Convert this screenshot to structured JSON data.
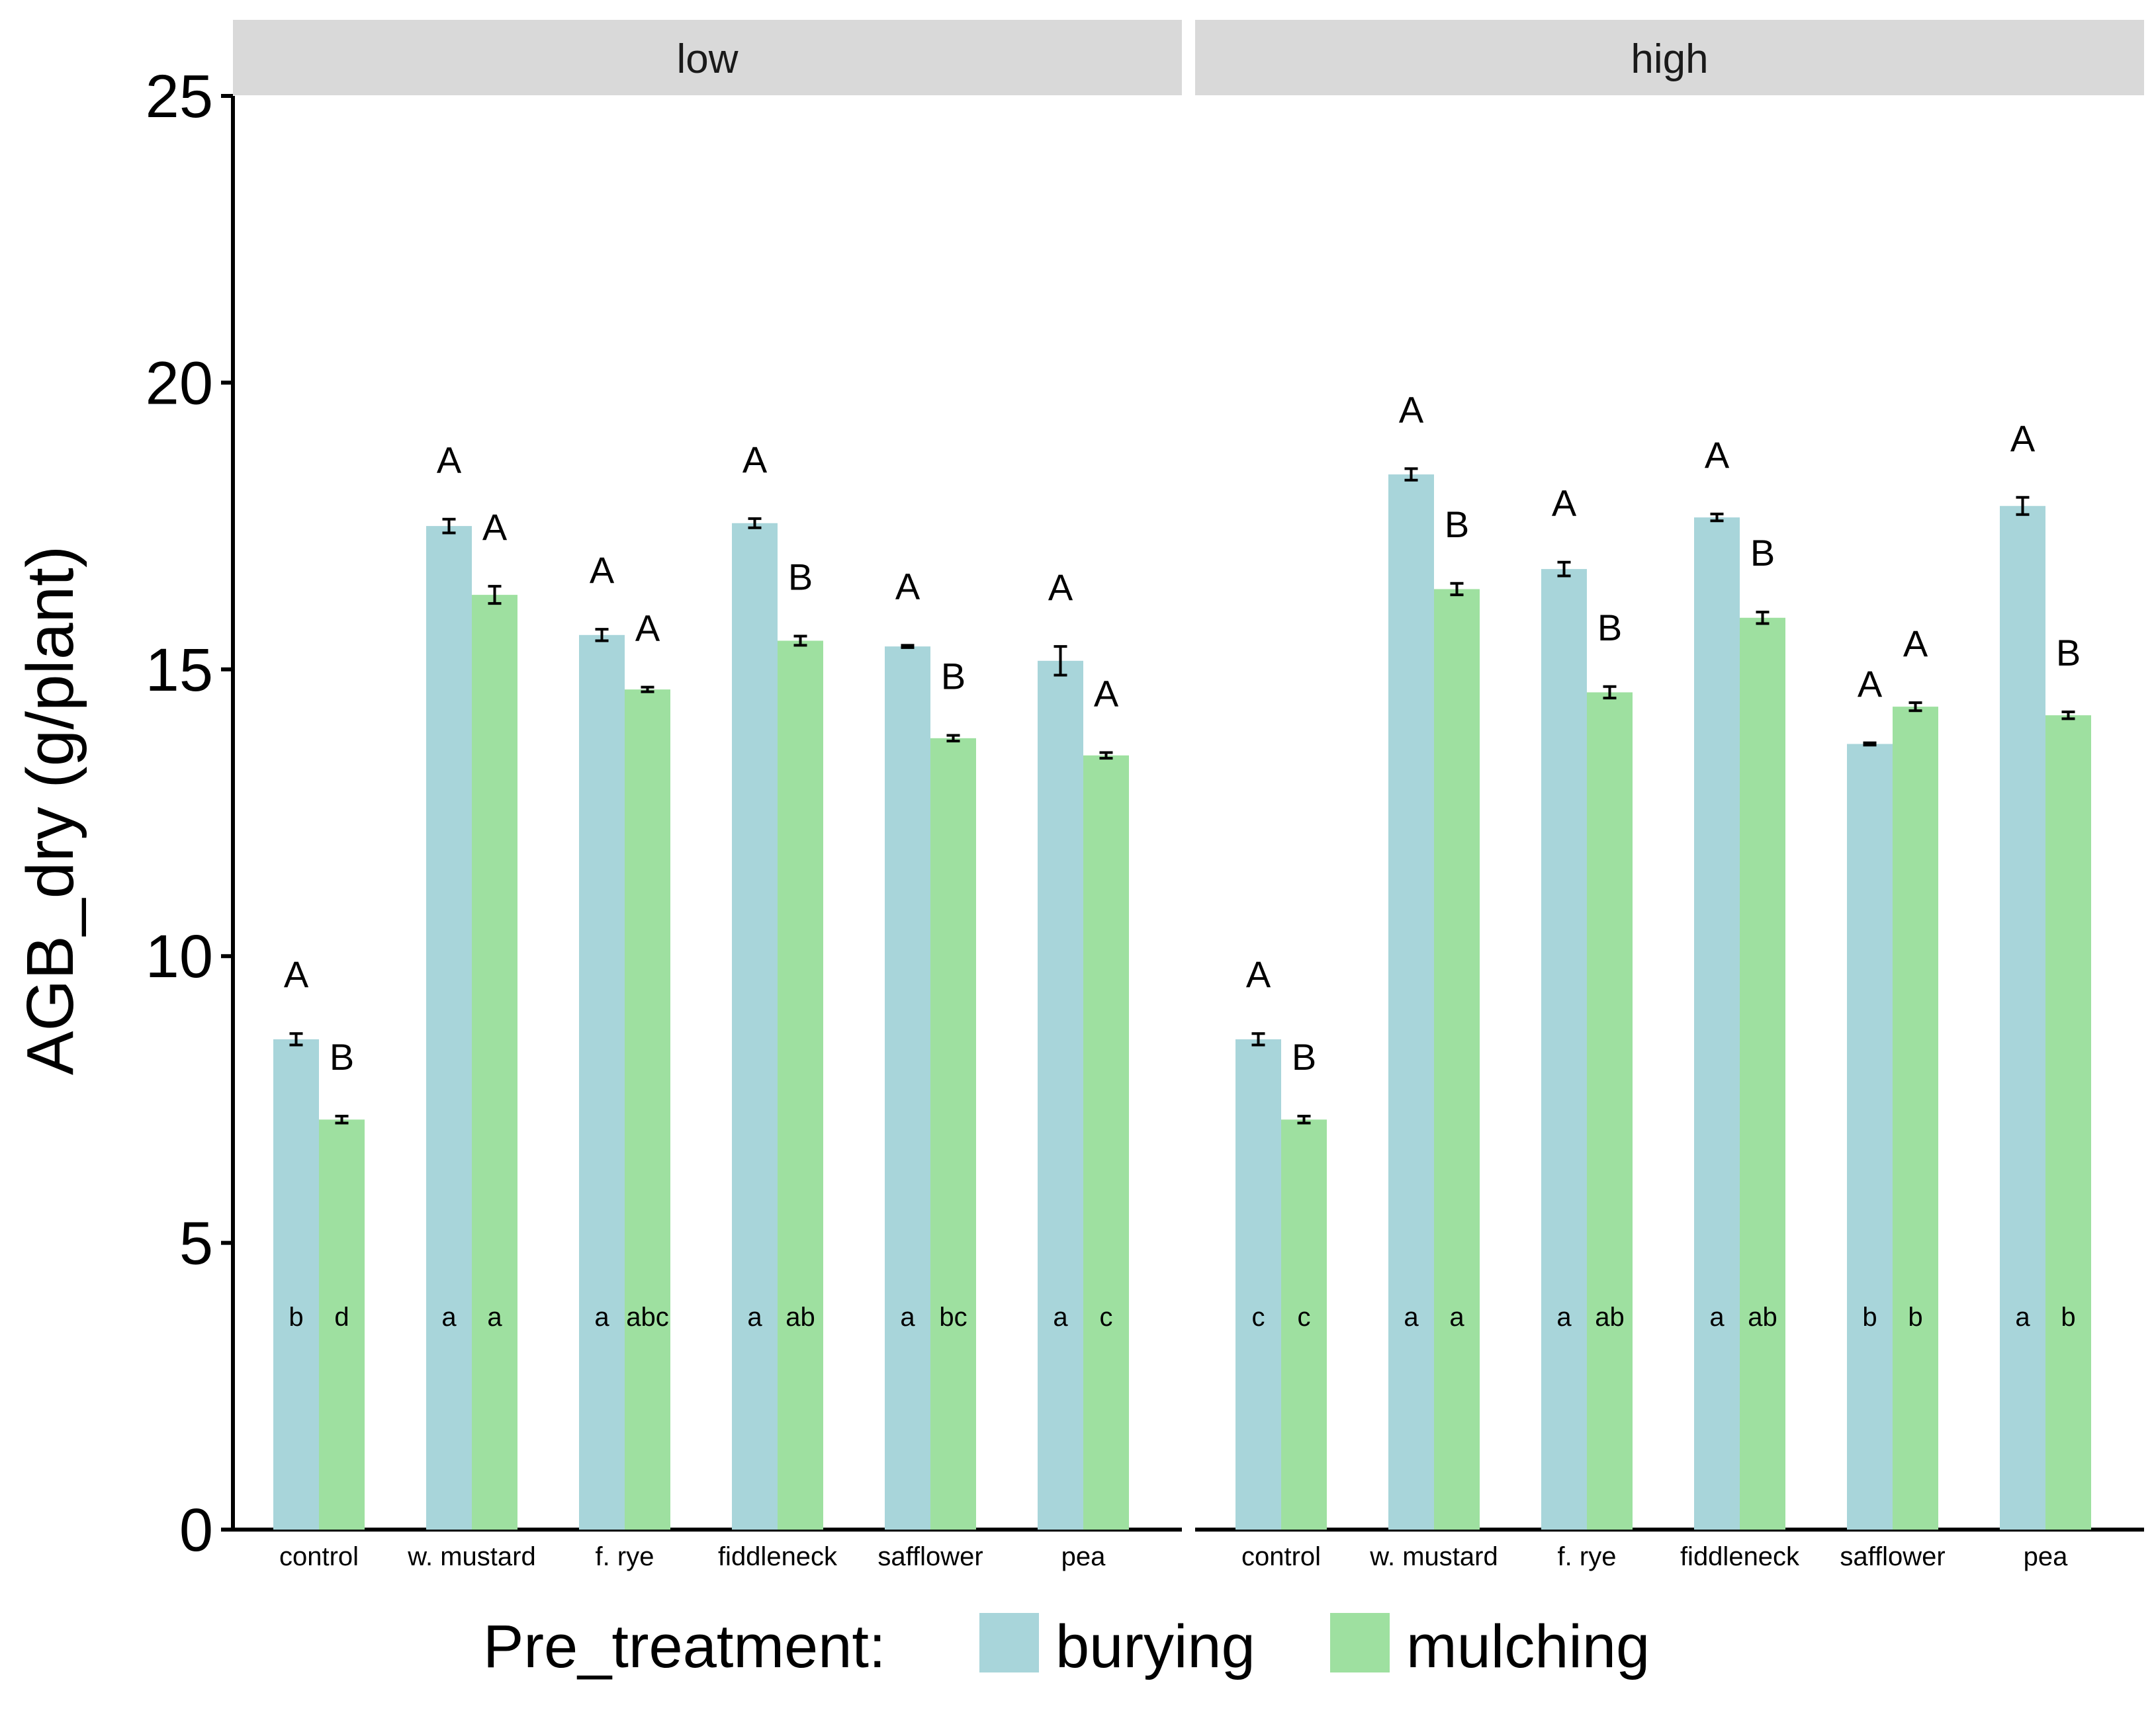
{
  "chart_data": {
    "type": "bar",
    "ylabel": "AGB_dry (g/plant)",
    "ylim": [
      0,
      25
    ],
    "yticks": [
      "0",
      "5",
      "10",
      "15",
      "20",
      "25"
    ],
    "categories": [
      "control",
      "w. mustard",
      "f. rye",
      "fiddleneck",
      "safflower",
      "pea"
    ],
    "legend": {
      "title": "Pre_treatment:",
      "position": "bottom",
      "items": [
        {
          "name": "burying",
          "color": "#a8d5da"
        },
        {
          "name": "mulching",
          "color": "#9ee0a0"
        }
      ]
    },
    "panels": [
      {
        "label": "low",
        "series": [
          {
            "name": "burying",
            "values": [
              8.55,
              17.5,
              15.6,
              17.55,
              15.4,
              15.15
            ],
            "errors": [
              0.1,
              0.12,
              0.1,
              0.08,
              0.02,
              0.25
            ],
            "upper_letters": [
              "A",
              "A",
              "A",
              "A",
              "A",
              "A"
            ],
            "lower_letters": [
              "b",
              "a",
              "a",
              "a",
              "a",
              "a"
            ]
          },
          {
            "name": "mulching",
            "values": [
              7.15,
              16.3,
              14.65,
              15.5,
              13.8,
              13.5
            ],
            "errors": [
              0.06,
              0.15,
              0.04,
              0.08,
              0.05,
              0.05
            ],
            "upper_letters": [
              "B",
              "A",
              "A",
              "B",
              "B",
              "A"
            ],
            "lower_letters": [
              "d",
              "a",
              "abc",
              "ab",
              "bc",
              "c"
            ]
          }
        ]
      },
      {
        "label": "high",
        "series": [
          {
            "name": "burying",
            "values": [
              8.55,
              18.4,
              16.75,
              17.65,
              13.7,
              17.85
            ],
            "errors": [
              0.1,
              0.1,
              0.12,
              0.06,
              0.02,
              0.15
            ],
            "upper_letters": [
              "A",
              "A",
              "A",
              "A",
              "A",
              "A"
            ],
            "lower_letters": [
              "c",
              "a",
              "a",
              "a",
              "b",
              "a"
            ]
          },
          {
            "name": "mulching",
            "values": [
              7.15,
              16.4,
              14.6,
              15.9,
              14.35,
              14.2
            ],
            "errors": [
              0.06,
              0.1,
              0.1,
              0.1,
              0.07,
              0.06
            ],
            "upper_letters": [
              "B",
              "B",
              "B",
              "B",
              "A",
              "B"
            ],
            "lower_letters": [
              "c",
              "a",
              "ab",
              "ab",
              "b",
              "b"
            ]
          }
        ]
      }
    ]
  }
}
